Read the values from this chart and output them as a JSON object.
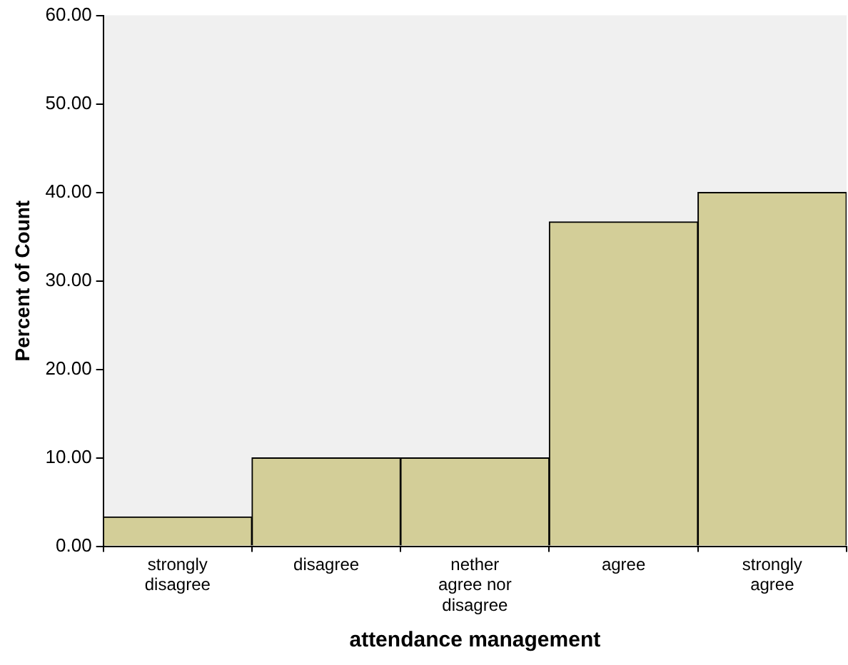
{
  "chart_data": {
    "type": "bar",
    "xlabel": "attendance management",
    "ylabel": "Percent of Count",
    "categories": [
      "strongly disagree",
      "disagree",
      "nether agree nor disagree",
      "agree",
      "strongly agree"
    ],
    "values": [
      3.33,
      10,
      10,
      36.67,
      40
    ],
    "color": "#d3ce98",
    "ylim": [
      0,
      60
    ],
    "yticks": [
      {
        "value": 0,
        "label": "0.00"
      },
      {
        "value": 10,
        "label": "10.00"
      },
      {
        "value": 20,
        "label": "20.00"
      },
      {
        "value": 30,
        "label": "30.00"
      },
      {
        "value": 40,
        "label": "40.00"
      },
      {
        "value": 50,
        "label": "50.00"
      },
      {
        "value": 60,
        "label": "60.00"
      }
    ],
    "grid": false,
    "legend": false
  }
}
